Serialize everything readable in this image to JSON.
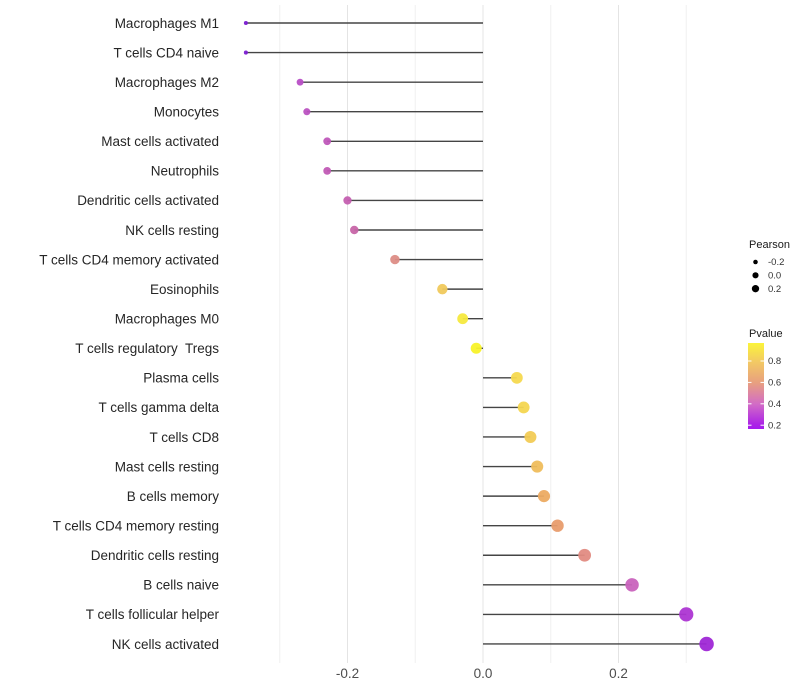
{
  "chart_data": {
    "type": "lollipop",
    "title": "",
    "xlabel": "",
    "ylabel": "",
    "x_tick_values": [
      -0.2,
      0.0,
      0.2
    ],
    "x_tick_labels": [
      "-0.2",
      "0.0",
      "0.2"
    ],
    "x_minor_gridlines": [
      -0.3,
      -0.1,
      0.1,
      0.3
    ],
    "xlim": [
      -0.39,
      0.37
    ],
    "grid": "vertical-only",
    "legend_position": "right",
    "colors": {
      "background": "#ffffff",
      "stem": "#454545",
      "grid_major": "#e4e4e4",
      "grid_minor": "#f0f0f0",
      "size_legend_dot": "#000000"
    },
    "rows": [
      {
        "label": "Macrophages M1",
        "pearson": -0.35,
        "color": "#7b1ed1"
      },
      {
        "label": "T cells CD4 naive",
        "pearson": -0.35,
        "color": "#7b1ed1"
      },
      {
        "label": "Macrophages M2",
        "pearson": -0.27,
        "color": "#b84ec6"
      },
      {
        "label": "Monocytes",
        "pearson": -0.26,
        "color": "#bb52c1"
      },
      {
        "label": "Mast cells activated",
        "pearson": -0.23,
        "color": "#bf57b9"
      },
      {
        "label": "Neutrophils",
        "pearson": -0.23,
        "color": "#c15ab5"
      },
      {
        "label": "Dendritic cells activated",
        "pearson": -0.2,
        "color": "#c45fb0"
      },
      {
        "label": "NK cells resting",
        "pearson": -0.19,
        "color": "#c765a8"
      },
      {
        "label": "T cells CD4 memory activated",
        "pearson": -0.13,
        "color": "#dd8d86"
      },
      {
        "label": "Eosinophils",
        "pearson": -0.06,
        "color": "#f0c95c"
      },
      {
        "label": "Macrophages M0",
        "pearson": -0.03,
        "color": "#f6e93e"
      },
      {
        "label": "T cells regulatory  Tregs",
        "pearson": -0.01,
        "color": "#f8f229"
      },
      {
        "label": "Plasma cells",
        "pearson": 0.05,
        "color": "#f5d94f"
      },
      {
        "label": "T cells gamma delta",
        "pearson": 0.06,
        "color": "#f4d650"
      },
      {
        "label": "T cells CD8",
        "pearson": 0.07,
        "color": "#f2cb55"
      },
      {
        "label": "Mast cells resting",
        "pearson": 0.08,
        "color": "#efbd5c"
      },
      {
        "label": "B cells memory",
        "pearson": 0.09,
        "color": "#ecab62"
      },
      {
        "label": "T cells CD4 memory resting",
        "pearson": 0.11,
        "color": "#e89c6d"
      },
      {
        "label": "Dendritic cells resting",
        "pearson": 0.15,
        "color": "#e28b82"
      },
      {
        "label": "B cells naive",
        "pearson": 0.22,
        "color": "#c963bd"
      },
      {
        "label": "T cells follicular helper",
        "pearson": 0.3,
        "color": "#ad35d3"
      },
      {
        "label": "NK cells activated",
        "pearson": 0.33,
        "color": "#9f27d6"
      }
    ],
    "legend": {
      "size_legend": {
        "title": "Pearson",
        "entries": [
          {
            "label": "-0.2",
            "value": -0.2
          },
          {
            "label": "0.0",
            "value": 0.0
          },
          {
            "label": "0.2",
            "value": 0.2
          }
        ]
      },
      "color_legend": {
        "title": "Pvalue",
        "ticks": [
          "0.8",
          "0.6",
          "0.4",
          "0.2"
        ],
        "gradient_stops": [
          {
            "offset": 0,
            "color": "#fbf43a"
          },
          {
            "offset": 0.21,
            "color": "#f3cb62"
          },
          {
            "offset": 0.46,
            "color": "#e8a07f"
          },
          {
            "offset": 0.71,
            "color": "#d26cc6"
          },
          {
            "offset": 0.95,
            "color": "#ab22e6"
          },
          {
            "offset": 1,
            "color": "#a51bee"
          }
        ]
      }
    }
  }
}
